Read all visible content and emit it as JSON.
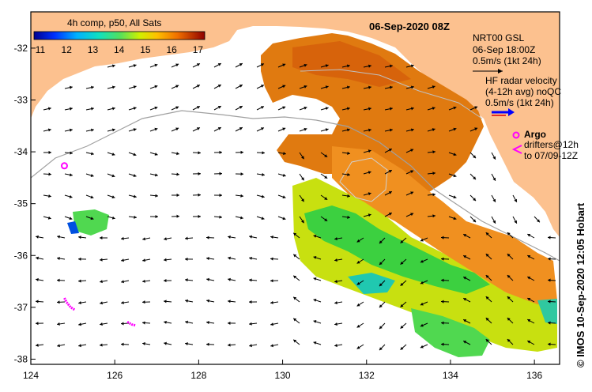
{
  "colorbar": {
    "title": "4h comp, p50, All Sats",
    "ticks": [
      "11",
      "12",
      "13",
      "14",
      "15",
      "16",
      "17"
    ],
    "range": [
      11,
      17.5
    ]
  },
  "header": {
    "date": "06-Sep-2020 08Z"
  },
  "legend": {
    "gsl_title": "NRT00 GSL",
    "gsl_time": "06-Sep 18:00Z",
    "gsl_scale": "0.5m/s (1kt 24h)",
    "hf_title": "HF radar velocity",
    "hf_avg": "(4-12h avg) noQC",
    "hf_scale": "0.5m/s (1kt 24h)",
    "argo_label": "Argo",
    "drifters_line1": "drifters@12h",
    "drifters_line2": "to 07/09-12Z"
  },
  "credit": "© IMOS 10-Sep-2020 12:05 Hobart",
  "axes": {
    "x_ticks": [
      "124",
      "126",
      "128",
      "130",
      "132",
      "134",
      "136"
    ],
    "y_ticks": [
      "-32",
      "-33",
      "-34",
      "-35",
      "-36",
      "-37",
      "-38"
    ],
    "lon_range": [
      124,
      136.6
    ],
    "lat_range": [
      -31.3,
      -38.1
    ]
  },
  "colors": {
    "land": "#fcc18f",
    "frame": "#000000",
    "argo": "#ff00ff",
    "hf_arrow": "#0000ff",
    "contour": "#a0a0a0"
  },
  "argo_float": {
    "lon": 124.8,
    "lat": -34.27
  },
  "drifter_tracks": [
    {
      "name": "drifter-a",
      "points": [
        [
          124.8,
          -36.82
        ],
        [
          124.85,
          -36.9
        ],
        [
          124.95,
          -37.0
        ],
        [
          125.05,
          -37.05
        ]
      ]
    },
    {
      "name": "drifter-b",
      "points": [
        [
          126.3,
          -37.28
        ],
        [
          126.4,
          -37.33
        ],
        [
          126.5,
          -37.35
        ]
      ]
    }
  ]
}
